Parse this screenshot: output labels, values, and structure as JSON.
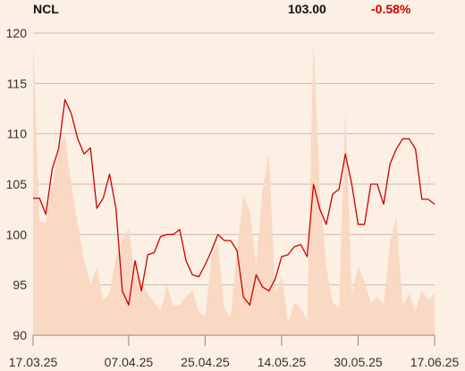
{
  "header": {
    "symbol": "NCL",
    "price": "103.00",
    "change": "-0.58%"
  },
  "colors": {
    "background": "#fcefe4",
    "line": "#cc0000",
    "volume": "#f9d9c3",
    "grid": "#c9bcb2",
    "change_negative": "#cc0000"
  },
  "chart_data": {
    "type": "line",
    "title": "",
    "xlabel": "",
    "ylabel": "",
    "ylim": [
      90,
      120
    ],
    "y_ticks": [
      "120",
      "115",
      "110",
      "105",
      "100",
      "95",
      "90"
    ],
    "x_tick_labels": [
      "17.03.25",
      "07.04.25",
      "25.04.25",
      "14.05.25",
      "30.05.25",
      "17.06.25"
    ],
    "x_tick_index": [
      0,
      15,
      27,
      39,
      51,
      63
    ],
    "grid": "horizontal",
    "series": [
      {
        "values": [
          103.6,
          103.6,
          102.0,
          106.5,
          108.5,
          113.4,
          112.0,
          109.5,
          108.0,
          108.6,
          102.6,
          103.6,
          106.0,
          102.6,
          94.4,
          93.0,
          97.4,
          94.4,
          98.0,
          98.2,
          99.8,
          100.0,
          100.0,
          100.5,
          97.4,
          96.0,
          95.8,
          97.0,
          98.4,
          100.0,
          99.4,
          99.4,
          98.4,
          93.8,
          93.0,
          96.0,
          94.8,
          94.4,
          95.6,
          97.8,
          98.0,
          98.8,
          99.0,
          97.8,
          105.0,
          102.5,
          101.0,
          104.0,
          104.5,
          108.0,
          105.0,
          101.0,
          101.0,
          105.0,
          105.0,
          103.0,
          107.0,
          108.5,
          109.5,
          109.5,
          108.5,
          103.5,
          103.5,
          103.0
        ]
      }
    ],
    "volume_values": [
      100,
      38,
      38,
      50,
      62,
      67,
      51,
      37,
      25,
      17,
      23,
      12,
      14,
      26,
      32,
      36,
      21,
      18,
      14,
      11,
      8,
      17,
      10,
      10,
      13,
      15,
      8,
      6,
      26,
      31,
      9,
      6,
      29,
      47,
      42,
      23,
      49,
      61,
      14,
      20,
      4,
      11,
      9,
      5,
      99,
      48,
      23,
      11,
      9,
      76,
      14,
      23,
      18,
      11,
      13,
      10,
      31,
      40,
      10,
      14,
      8,
      15,
      12,
      14
    ]
  }
}
